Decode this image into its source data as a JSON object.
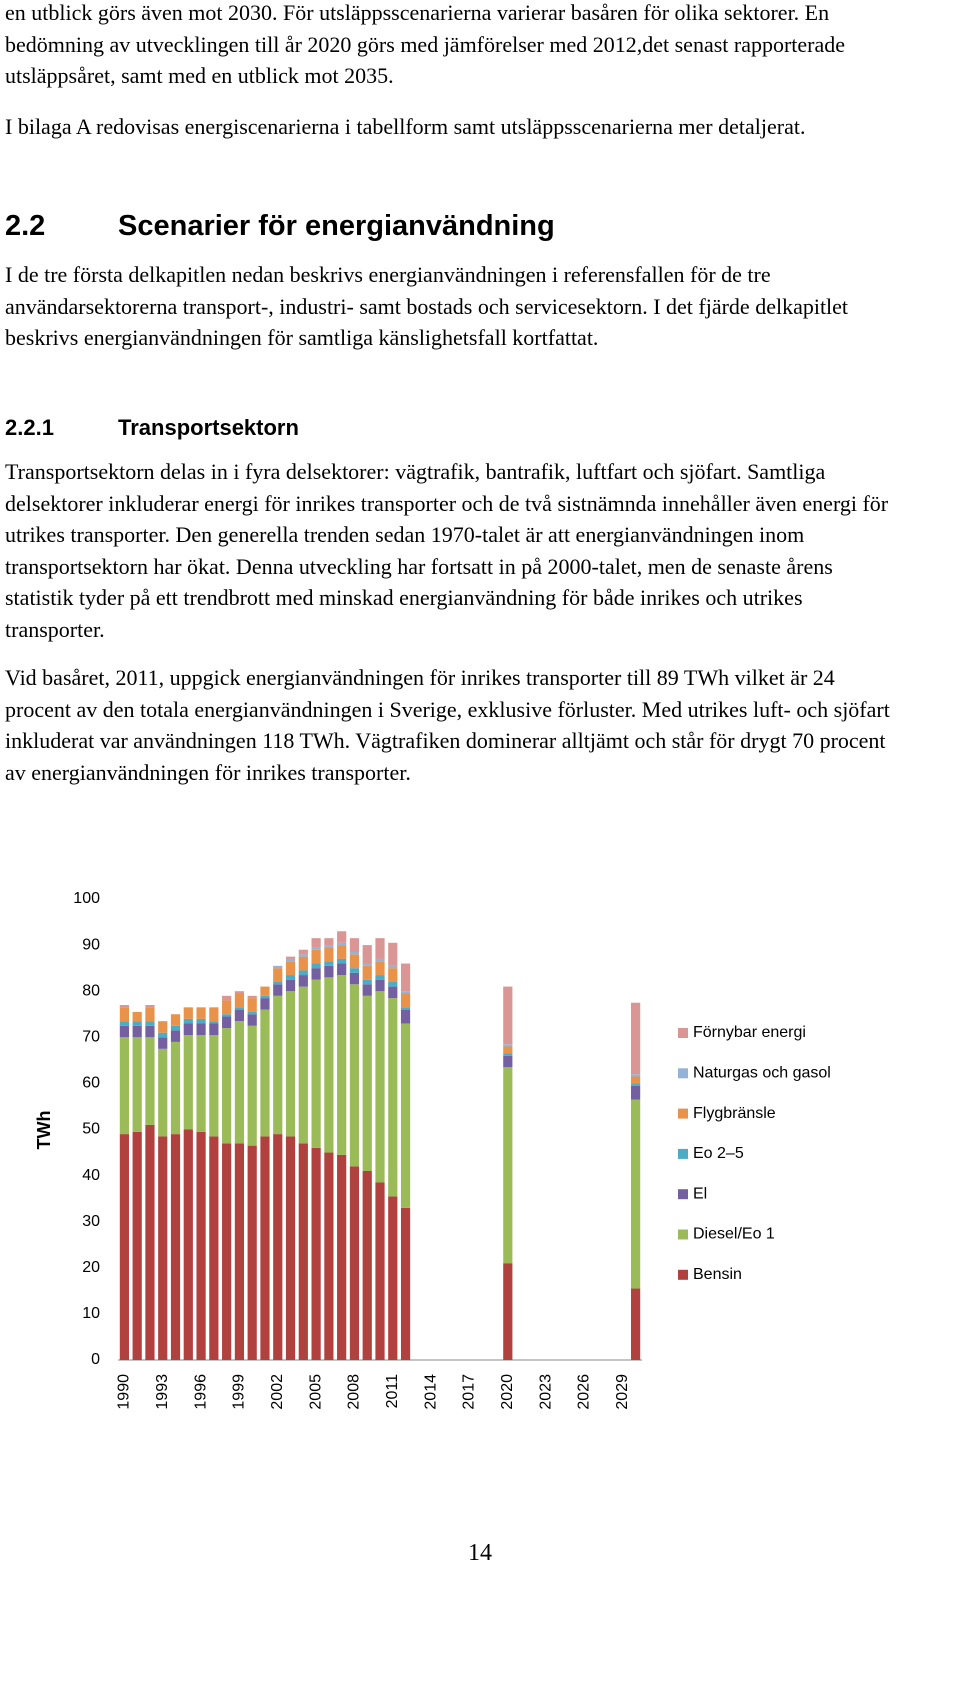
{
  "intro": [
    "en utblick görs även mot 2030. För utsläppsscenarierna varierar basåren för olika sektorer. En bedömning av utvecklingen till år 2020 görs med jämförelser med 2012,det senast rapporterade utsläppsåret, samt med en utblick mot 2035.",
    "I bilaga A redovisas energiscenarierna i tabellform samt utsläppsscenarierna mer detaljerat."
  ],
  "section": {
    "number": "2.2",
    "title": "Scenarier för energianvändning",
    "text": "I de tre första delkapitlen nedan beskrivs energianvändningen i referensfallen för de tre användarsektorerna transport-, industri- samt bostads och servicesektorn. I det fjärde delkapitlet beskrivs energianvändningen för samtliga känslighetsfall kortfattat."
  },
  "subsection": {
    "number": "2.2.1",
    "title": "Transportsektorn",
    "paragraphs": [
      "Transportsektorn delas in i fyra delsektorer: vägtrafik, bantrafik, luftfart och sjöfart. Samtliga delsektorer inkluderar energi för inrikes transporter och de två sistnämnda innehåller även energi för utrikes transporter. Den generella trenden sedan 1970-talet är att energianvändningen inom transportsektorn har ökat. Denna utveckling har fortsatt in på 2000-talet, men de senaste årens statistik tyder på ett trendbrott med minskad energianvändning för både inrikes och utrikes transporter.",
      "Vid basåret, 2011, uppgick energianvändningen för inrikes transporter till 89 TWh vilket är 24 procent av den totala energianvändningen i Sverige, exklusive förluster. Med utrikes luft- och sjöfart inkluderat var användningen 118 TWh. Vägtrafiken dominerar alltjämt och står för drygt 70 procent av energianvändningen för inrikes transporter."
    ]
  },
  "chart_data": {
    "type": "stacked_bar",
    "y_label": "TWh",
    "ylim": [
      0,
      100
    ],
    "yticks": [
      0,
      10,
      20,
      30,
      40,
      50,
      60,
      70,
      80,
      90,
      100
    ],
    "categories": [
      "1990",
      null,
      null,
      "1993",
      null,
      null,
      "1996",
      null,
      null,
      "1999",
      null,
      null,
      "2002",
      null,
      null,
      "2005",
      null,
      null,
      "2008",
      null,
      null,
      "2011",
      null,
      null,
      "2014",
      null,
      null,
      "2017",
      null,
      null,
      "2020",
      null,
      null,
      "2023",
      null,
      null,
      "2026",
      null,
      null,
      "2029",
      null
    ],
    "series": [
      {
        "name": "Bensin",
        "color": "#b0413e",
        "values": [
          49,
          49.5,
          51,
          48.5,
          49,
          50,
          49.5,
          48.5,
          47,
          47,
          46.5,
          48.5,
          49,
          48.5,
          47,
          46,
          45,
          44.5,
          42,
          41,
          38.5,
          35.5,
          33,
          null,
          null,
          null,
          null,
          null,
          null,
          null,
          21,
          null,
          null,
          null,
          null,
          null,
          null,
          null,
          null,
          null,
          15.5
        ]
      },
      {
        "name": "Diesel/Eo 1",
        "color": "#9bbb59",
        "values": [
          21,
          20.5,
          19,
          19,
          20,
          20.5,
          21,
          22,
          25,
          26.5,
          26,
          27.5,
          30,
          31.5,
          34,
          36.5,
          38,
          39,
          39.5,
          38,
          41.5,
          43,
          40,
          null,
          null,
          null,
          null,
          null,
          null,
          null,
          42.5,
          null,
          null,
          null,
          null,
          null,
          null,
          null,
          null,
          null,
          41
        ]
      },
      {
        "name": "El",
        "color": "#7460a0",
        "values": [
          2.5,
          2.5,
          2.5,
          2.5,
          2.5,
          2.5,
          2.5,
          2.5,
          2.5,
          2.5,
          2.5,
          2.5,
          2.5,
          2.5,
          2.5,
          2.5,
          2.5,
          2.5,
          2.5,
          2.5,
          2.5,
          2.5,
          3,
          null,
          null,
          null,
          null,
          null,
          null,
          null,
          2.5,
          null,
          null,
          null,
          null,
          null,
          null,
          null,
          null,
          null,
          3
        ]
      },
      {
        "name": "Eo 2–5",
        "color": "#4bacc6",
        "values": [
          1,
          1,
          1,
          1,
          1,
          1,
          1,
          0.5,
          0.5,
          0.5,
          0.5,
          0.5,
          0.5,
          1,
          1,
          1,
          1,
          1,
          1,
          1,
          1,
          1,
          0.5,
          null,
          null,
          null,
          null,
          null,
          null,
          null,
          0.5,
          null,
          null,
          null,
          null,
          null,
          null,
          null,
          null,
          null,
          0.5
        ]
      },
      {
        "name": "Flygbränsle",
        "color": "#e8924a",
        "values": [
          3,
          2,
          3,
          2.5,
          2.5,
          2.5,
          2.5,
          3,
          3,
          3,
          3,
          2,
          3,
          3,
          3,
          3,
          3,
          3,
          3,
          3,
          3,
          3,
          3,
          null,
          null,
          null,
          null,
          null,
          null,
          null,
          1.5,
          null,
          null,
          null,
          null,
          null,
          null,
          null,
          null,
          null,
          1.5
        ]
      },
      {
        "name": "Naturgas och gasol",
        "color": "#95b3d7",
        "values": [
          0,
          0,
          0,
          0,
          0,
          0,
          0,
          0,
          0,
          0,
          0,
          0,
          0.5,
          0.5,
          0.5,
          0.5,
          0.5,
          0.5,
          0.5,
          0.5,
          0.5,
          0.5,
          0.5,
          null,
          null,
          null,
          null,
          null,
          null,
          null,
          0.5,
          null,
          null,
          null,
          null,
          null,
          null,
          null,
          null,
          null,
          0.5
        ]
      },
      {
        "name": "Förnybar energi",
        "color": "#d99694",
        "values": [
          0.5,
          0,
          0.5,
          0,
          0,
          0,
          0,
          0,
          1,
          0.5,
          0.5,
          0,
          0,
          0.5,
          1,
          2,
          1.5,
          2.5,
          3,
          4,
          4.5,
          5,
          6,
          null,
          null,
          null,
          null,
          null,
          null,
          null,
          12.5,
          null,
          null,
          null,
          null,
          null,
          null,
          null,
          null,
          null,
          15.5
        ]
      }
    ]
  },
  "page_number": "14"
}
